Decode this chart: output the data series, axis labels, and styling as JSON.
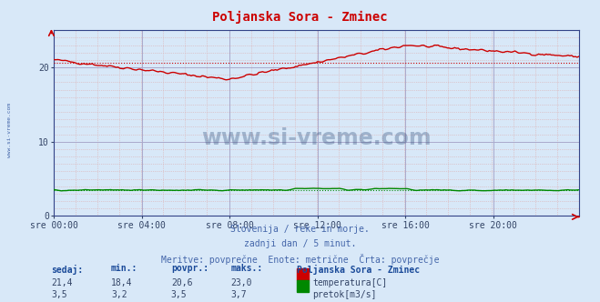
{
  "title": "Poljanska Sora - Zminec",
  "title_color": "#cc0000",
  "bg_color": "#d8e8f8",
  "plot_bg_color": "#d8e8f8",
  "x_tick_labels": [
    "sre 00:00",
    "sre 04:00",
    "sre 08:00",
    "sre 12:00",
    "sre 16:00",
    "sre 20:00"
  ],
  "x_tick_positions": [
    0,
    48,
    96,
    144,
    192,
    240
  ],
  "y_ticks": [
    0,
    10,
    20
  ],
  "y_lim": [
    0,
    25
  ],
  "x_lim": [
    0,
    287
  ],
  "temp_color": "#cc0000",
  "flow_color": "#008800",
  "avg_temp": 20.6,
  "avg_flow": 3.5,
  "subtitle1": "Slovenija / reke in morje.",
  "subtitle2": "zadnji dan / 5 minut.",
  "subtitle3": "Meritve: povprečne  Enote: metrične  Črta: povprečje",
  "subtitle_color": "#4466aa",
  "table_header": [
    "sedaj:",
    "min.:",
    "povpr.:",
    "maks.:",
    "Poljanska Sora - Zminec"
  ],
  "table_row1": [
    "21,4",
    "18,4",
    "20,6",
    "23,0"
  ],
  "table_row2": [
    "3,5",
    "3,2",
    "3,5",
    "3,7"
  ],
  "label_temp": "temperatura[C]",
  "label_flow": "pretok[m3/s]",
  "watermark": "www.si-vreme.com",
  "watermark_color": "#1a3a6a",
  "left_label": "www.si-vreme.com",
  "left_label_color": "#4466aa"
}
